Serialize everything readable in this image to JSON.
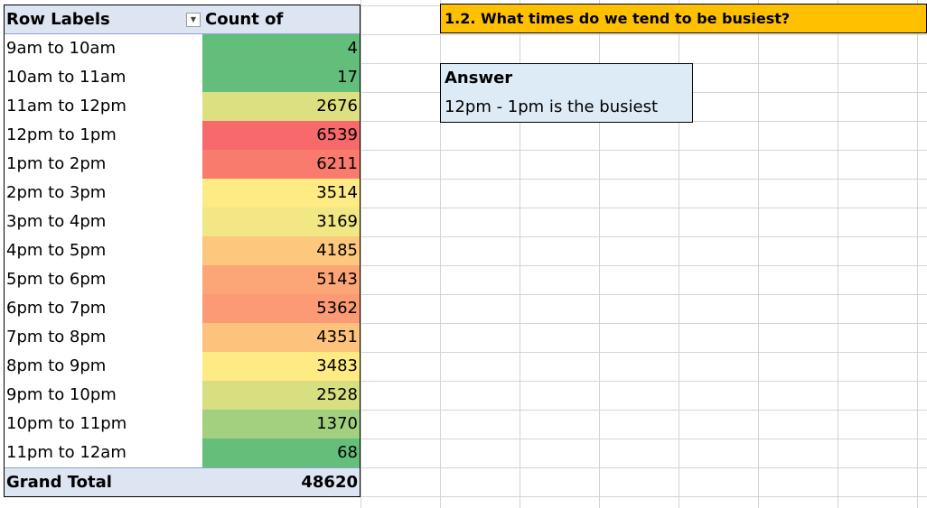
{
  "pivot": {
    "header_label": "Row Labels",
    "header_value": "Count of order_id",
    "dropdown_glyph": "▼",
    "rows": [
      {
        "label": "9am to 10am",
        "value": "4",
        "color": "#63be7b"
      },
      {
        "label": "10am to 11am",
        "value": "17",
        "color": "#63be7b"
      },
      {
        "label": "11am to 12pm",
        "value": "2676",
        "color": "#dde081"
      },
      {
        "label": "12pm to 1pm",
        "value": "6539",
        "color": "#f8696b"
      },
      {
        "label": "1pm to 2pm",
        "value": "6211",
        "color": "#f97b6e"
      },
      {
        "label": "2pm to 3pm",
        "value": "3514",
        "color": "#ffeb84"
      },
      {
        "label": "3pm to 4pm",
        "value": "3169",
        "color": "#f1e784"
      },
      {
        "label": "4pm to 5pm",
        "value": "4185",
        "color": "#fdc77d"
      },
      {
        "label": "5pm to 6pm",
        "value": "5143",
        "color": "#fca577"
      },
      {
        "label": "6pm to 7pm",
        "value": "5362",
        "color": "#fb9a74"
      },
      {
        "label": "7pm to 8pm",
        "value": "4351",
        "color": "#fdc27c"
      },
      {
        "label": "8pm to 9pm",
        "value": "3483",
        "color": "#ffea84"
      },
      {
        "label": "9pm to 10pm",
        "value": "2528",
        "color": "#d7df81"
      },
      {
        "label": "10pm to 11pm",
        "value": "1370",
        "color": "#a2d07f"
      },
      {
        "label": "11pm to 12am",
        "value": "68",
        "color": "#65bf7b"
      }
    ],
    "total_label": "Grand Total",
    "total_value": "48620"
  },
  "question": {
    "text": "1.2.  What times do we tend to be busiest?",
    "color": "#ffc000"
  },
  "answer": {
    "title": "Answer",
    "text": "12pm - 1pm is the busiest",
    "color": "#ddebf7"
  }
}
